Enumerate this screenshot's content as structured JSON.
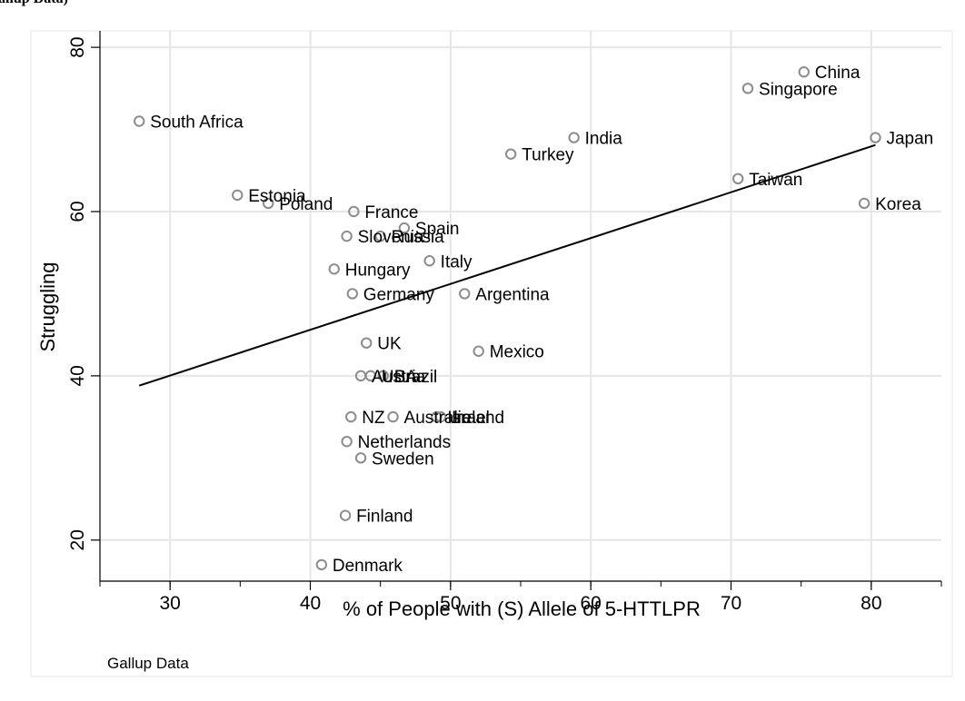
{
  "header": {
    "title_fragment": "allup Data)"
  },
  "note": "Gallup Data",
  "chart_data": {
    "type": "scatter",
    "title": "",
    "xlabel": "% of People with (S) Allele of 5-HTTLPR",
    "ylabel": "Struggling",
    "xlim": [
      25,
      85
    ],
    "ylim": [
      15,
      82
    ],
    "xticks": [
      30,
      40,
      50,
      60,
      70,
      80
    ],
    "yticks": [
      20,
      40,
      60,
      80
    ],
    "grid": true,
    "legend": "none",
    "colors": {
      "marker": "#8c8c8c",
      "fit": "#000000",
      "grid": "#e6e6e6",
      "panel_border": "#e6e6e6"
    },
    "points": [
      {
        "label": "South Africa",
        "x": 27.8,
        "y": 71
      },
      {
        "label": "Estonia",
        "x": 34.8,
        "y": 62
      },
      {
        "label": "Poland",
        "x": 37.0,
        "y": 61
      },
      {
        "label": "France",
        "x": 43.1,
        "y": 60
      },
      {
        "label": "Slovenia",
        "x": 42.6,
        "y": 57
      },
      {
        "label": "Russia",
        "x": 45.0,
        "y": 57
      },
      {
        "label": "Spain",
        "x": 46.7,
        "y": 58
      },
      {
        "label": "Hungary",
        "x": 41.7,
        "y": 53
      },
      {
        "label": "Italy",
        "x": 48.5,
        "y": 54
      },
      {
        "label": "Germany",
        "x": 43.0,
        "y": 50
      },
      {
        "label": "Argentina",
        "x": 51.0,
        "y": 50
      },
      {
        "label": "UK",
        "x": 44.0,
        "y": 44
      },
      {
        "label": "Mexico",
        "x": 52.0,
        "y": 43
      },
      {
        "label": "Austria",
        "x": 43.6,
        "y": 40
      },
      {
        "label": "USA",
        "x": 44.3,
        "y": 40
      },
      {
        "label": "Brazil",
        "x": 45.2,
        "y": 40
      },
      {
        "label": "NZ",
        "x": 42.9,
        "y": 35
      },
      {
        "label": "Australia",
        "x": 45.9,
        "y": 35
      },
      {
        "label": "Israel",
        "x": 49.0,
        "y": 35
      },
      {
        "label": "Ireland",
        "x": 49.3,
        "y": 35
      },
      {
        "label": "Netherlands",
        "x": 42.6,
        "y": 32
      },
      {
        "label": "Sweden",
        "x": 43.6,
        "y": 30
      },
      {
        "label": "Finland",
        "x": 42.5,
        "y": 23
      },
      {
        "label": "Denmark",
        "x": 40.8,
        "y": 17
      },
      {
        "label": "Turkey",
        "x": 54.3,
        "y": 67
      },
      {
        "label": "India",
        "x": 58.8,
        "y": 69
      },
      {
        "label": "China",
        "x": 75.2,
        "y": 77
      },
      {
        "label": "Singapore",
        "x": 71.2,
        "y": 75
      },
      {
        "label": "Japan",
        "x": 80.3,
        "y": 69
      },
      {
        "label": "Taiwan",
        "x": 70.5,
        "y": 64
      },
      {
        "label": "Korea",
        "x": 79.5,
        "y": 61
      }
    ],
    "fit_line": {
      "x": [
        27.8,
        80.3
      ],
      "y": [
        38.8,
        68.1
      ]
    }
  }
}
